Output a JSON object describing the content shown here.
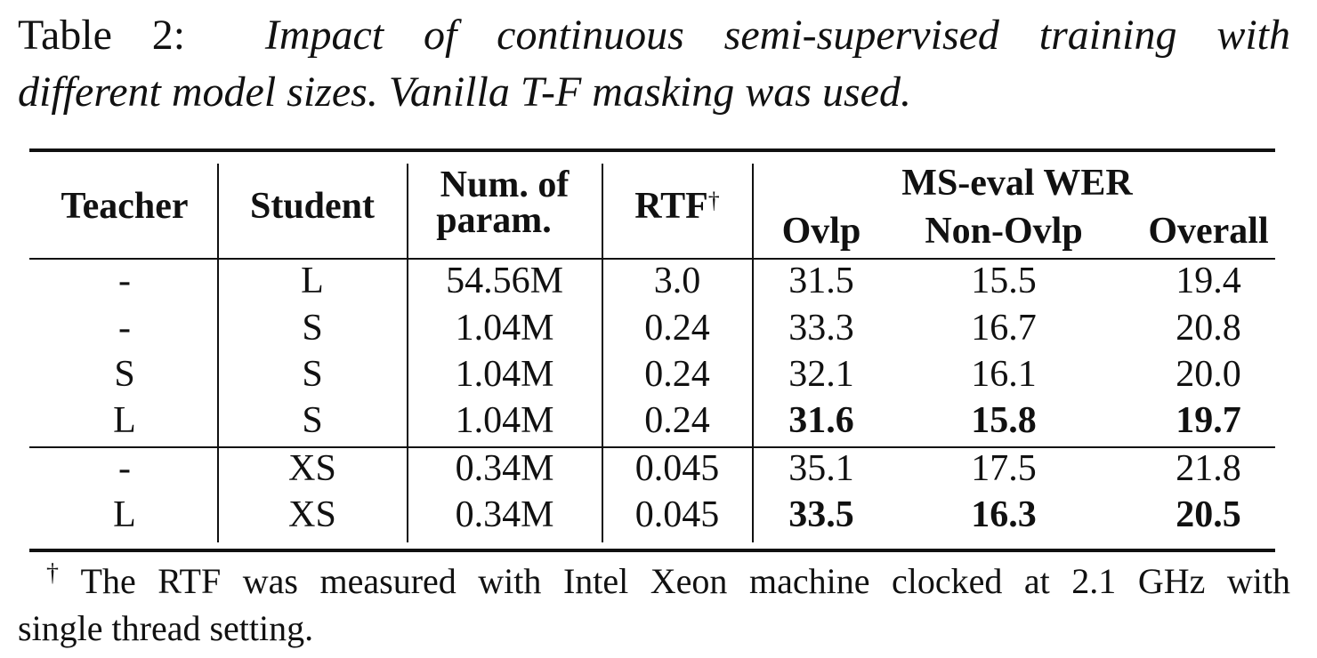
{
  "caption": {
    "label": "Table 2:",
    "line1": "Impact of continuous semi-supervised training with",
    "line2": "different model sizes. Vanilla T-F masking was used."
  },
  "headers": {
    "teacher": "Teacher",
    "student": "Student",
    "num_params_line1": "Num. of",
    "num_params_line2": "param.",
    "rtf": "RTF",
    "rtf_mark": "†",
    "group": "MS-eval WER",
    "ovlp": "Ovlp",
    "non_ovlp": "Non-Ovlp",
    "overall": "Overall"
  },
  "rows": [
    {
      "teacher": "-",
      "student": "L",
      "params": "54.56M",
      "rtf": "3.0",
      "ovlp": "31.5",
      "non_ovlp": "15.5",
      "overall": "19.4",
      "bold": false
    },
    {
      "teacher": "-",
      "student": "S",
      "params": "1.04M",
      "rtf": "0.24",
      "ovlp": "33.3",
      "non_ovlp": "16.7",
      "overall": "20.8",
      "bold": false
    },
    {
      "teacher": "S",
      "student": "S",
      "params": "1.04M",
      "rtf": "0.24",
      "ovlp": "32.1",
      "non_ovlp": "16.1",
      "overall": "20.0",
      "bold": false
    },
    {
      "teacher": "L",
      "student": "S",
      "params": "1.04M",
      "rtf": "0.24",
      "ovlp": "31.6",
      "non_ovlp": "15.8",
      "overall": "19.7",
      "bold": true
    },
    {
      "teacher": "-",
      "student": "XS",
      "params": "0.34M",
      "rtf": "0.045",
      "ovlp": "35.1",
      "non_ovlp": "17.5",
      "overall": "21.8",
      "bold": false
    },
    {
      "teacher": "L",
      "student": "XS",
      "params": "0.34M",
      "rtf": "0.045",
      "ovlp": "33.5",
      "non_ovlp": "16.3",
      "overall": "20.5",
      "bold": true
    }
  ],
  "footnote": {
    "mark": "†",
    "line1": "The RTF was measured with Intel Xeon machine clocked at 2.1 GHz with",
    "line2": "single thread setting."
  }
}
